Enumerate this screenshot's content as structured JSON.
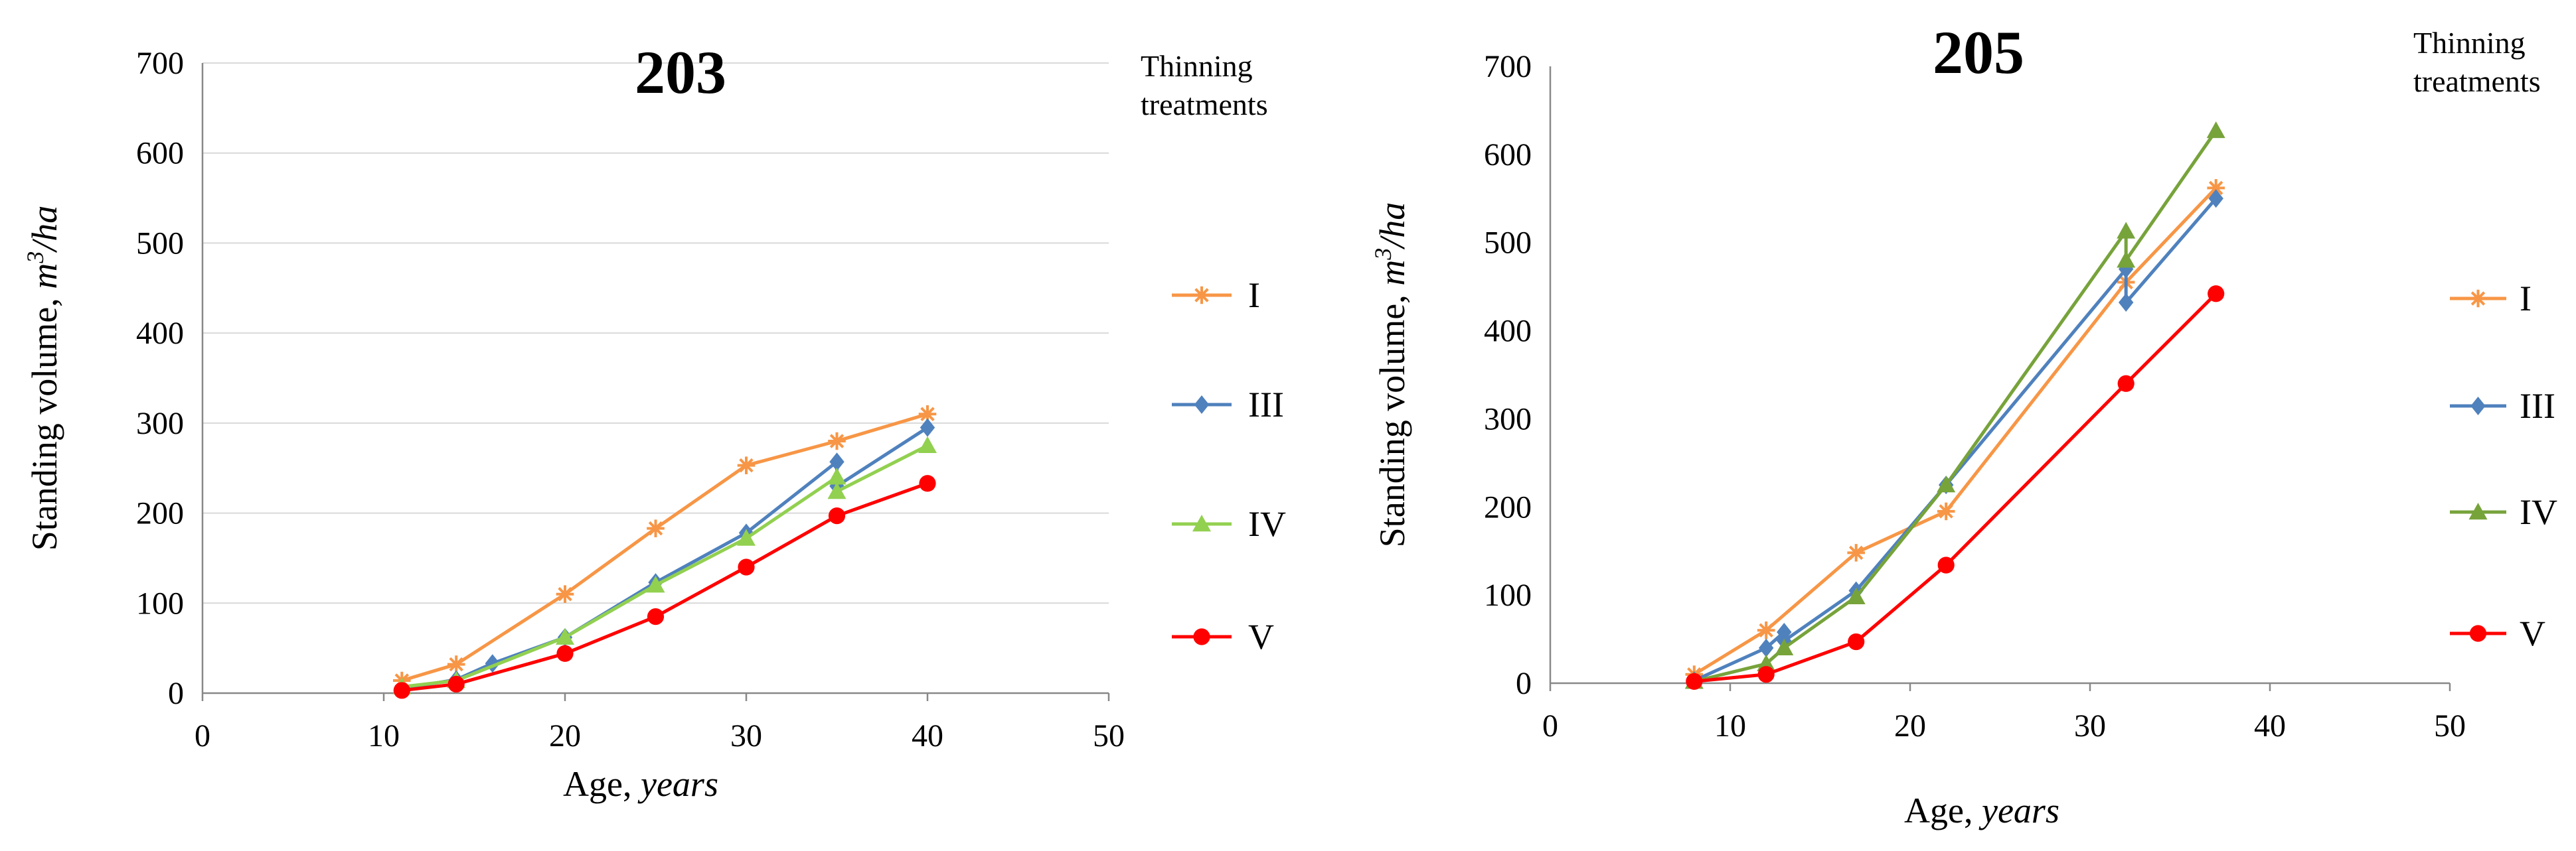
{
  "chart_data": [
    {
      "type": "line",
      "title": "203",
      "xlabel": "Age,",
      "xlabel_unit": "years",
      "ylabel": "Standing volume,",
      "ylabel_unit_base": "m",
      "ylabel_unit_sup": "3",
      "ylabel_unit_tail": "/ha",
      "xlim": [
        0,
        50
      ],
      "ylim": [
        0,
        700
      ],
      "xticks": [
        "0",
        "10",
        "20",
        "30",
        "40",
        "50"
      ],
      "yticks": [
        "0",
        "100",
        "200",
        "300",
        "400",
        "500",
        "600",
        "700"
      ],
      "grid": true,
      "legend_title_lines": [
        "Thinning",
        "treatments"
      ],
      "series": [
        {
          "name": "I",
          "color": "#F79646",
          "marker": "star",
          "x": [
            11,
            14,
            20,
            25,
            30,
            35,
            40
          ],
          "values": [
            14,
            32,
            110,
            183,
            253,
            280,
            310
          ]
        },
        {
          "name": "III",
          "color": "#4F81BD",
          "marker": "diamond",
          "x": [
            11,
            14,
            16,
            20,
            25,
            30,
            35,
            35,
            40
          ],
          "values": [
            5,
            15,
            33,
            62,
            123,
            178,
            257,
            230,
            295
          ]
        },
        {
          "name": "IV",
          "color": "#92D050",
          "marker": "triangle",
          "x": [
            11,
            14,
            20,
            25,
            30,
            35,
            35,
            40
          ],
          "values": [
            7,
            14,
            62,
            120,
            172,
            240,
            224,
            275
          ]
        },
        {
          "name": "V",
          "color": "#FF0000",
          "marker": "circle",
          "x": [
            11,
            14,
            20,
            25,
            30,
            35,
            40
          ],
          "values": [
            3,
            10,
            44,
            85,
            140,
            197,
            233
          ]
        }
      ]
    },
    {
      "type": "line",
      "title": "205",
      "xlabel": "Age,",
      "xlabel_unit": "years",
      "ylabel": "Standing volume,",
      "ylabel_unit_base": "m",
      "ylabel_unit_sup": "3",
      "ylabel_unit_tail": "/ha",
      "xlim": [
        0,
        50
      ],
      "ylim": [
        0,
        700
      ],
      "xticks": [
        "0",
        "10",
        "20",
        "30",
        "40",
        "50"
      ],
      "yticks": [
        "0",
        "100",
        "200",
        "300",
        "400",
        "500",
        "600",
        "700"
      ],
      "grid": false,
      "legend_title_lines": [
        "Thinning",
        "treatments"
      ],
      "series": [
        {
          "name": "I",
          "color": "#F79646",
          "marker": "star",
          "x": [
            8,
            12,
            17,
            22,
            32,
            37
          ],
          "values": [
            10,
            60,
            148,
            195,
            455,
            562
          ]
        },
        {
          "name": "III",
          "color": "#4F81BD",
          "marker": "diamond",
          "x": [
            8,
            12,
            13,
            13,
            17,
            22,
            32,
            32,
            37
          ],
          "values": [
            3,
            40,
            58,
            48,
            105,
            225,
            470,
            432,
            550
          ]
        },
        {
          "name": "IV",
          "color": "#77A33B",
          "marker": "triangle",
          "x": [
            8,
            12,
            13,
            17,
            22,
            32,
            32,
            37
          ],
          "values": [
            2,
            22,
            40,
            98,
            225,
            513,
            480,
            627
          ]
        },
        {
          "name": "V",
          "color": "#FF0000",
          "marker": "circle",
          "x": [
            8,
            12,
            17,
            22,
            32,
            37
          ],
          "values": [
            2,
            10,
            47,
            134,
            340,
            442
          ]
        }
      ]
    }
  ]
}
